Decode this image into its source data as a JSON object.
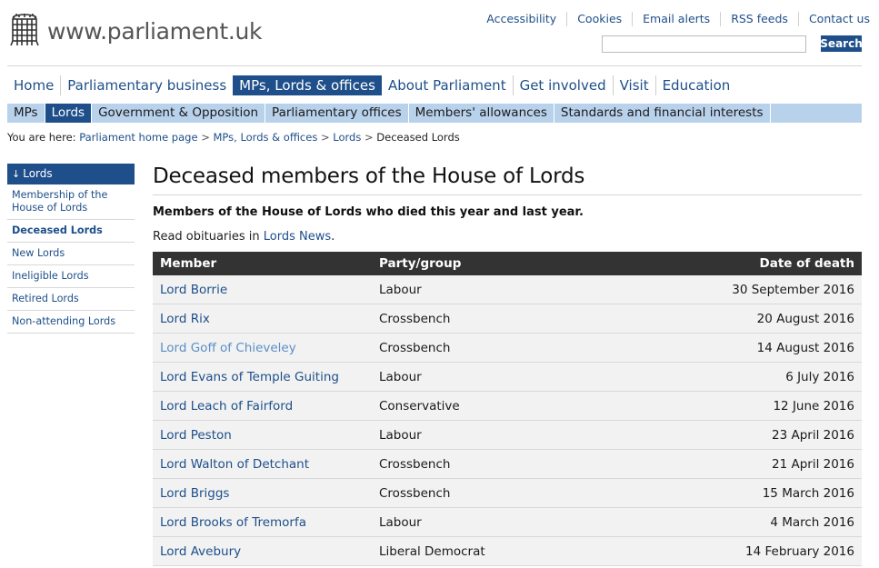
{
  "header": {
    "site_title": "www.parliament.uk",
    "utility_links": [
      "Accessibility",
      "Cookies",
      "Email alerts",
      "RSS feeds",
      "Contact us"
    ],
    "search": {
      "placeholder": "",
      "value": "",
      "button_label": "Search"
    }
  },
  "primary_nav": [
    {
      "label": "Home"
    },
    {
      "label": "Parliamentary business"
    },
    {
      "label": "MPs, Lords & offices",
      "active": true
    },
    {
      "label": "About Parliament"
    },
    {
      "label": "Get involved"
    },
    {
      "label": "Visit"
    },
    {
      "label": "Education"
    }
  ],
  "secondary_nav": [
    {
      "label": "MPs"
    },
    {
      "label": "Lords",
      "active": true
    },
    {
      "label": "Government & Opposition"
    },
    {
      "label": "Parliamentary offices"
    },
    {
      "label": "Members' allowances"
    },
    {
      "label": "Standards and financial interests"
    }
  ],
  "breadcrumb": {
    "prefix": "You are here:",
    "links": [
      "Parliament home page",
      "MPs, Lords & offices",
      "Lords"
    ],
    "separator": ">",
    "current": "Deceased Lords"
  },
  "sidebar": {
    "heading": "Lords",
    "items": [
      {
        "label": "Membership of the House of Lords"
      },
      {
        "label": "Deceased Lords",
        "active": true
      },
      {
        "label": "New Lords"
      },
      {
        "label": "Ineligible Lords"
      },
      {
        "label": "Retired Lords"
      },
      {
        "label": "Non-attending Lords"
      }
    ]
  },
  "main": {
    "title": "Deceased members of the House of Lords",
    "subtitle": "Members of the House of Lords who died this year and last year.",
    "intro_prefix": "Read obituaries in ",
    "intro_link": "Lords News",
    "intro_suffix": ".",
    "table": {
      "headers": [
        "Member",
        "Party/group",
        "Date of death"
      ],
      "rows": [
        {
          "member": "Lord Borrie",
          "party": "Labour",
          "date": "30 September 2016"
        },
        {
          "member": "Lord Rix",
          "party": "Crossbench",
          "date": "20 August 2016"
        },
        {
          "member": "Lord Goff of Chieveley",
          "party": "Crossbench",
          "date": "14 August 2016",
          "visited": true
        },
        {
          "member": "Lord Evans of Temple Guiting",
          "party": "Labour",
          "date": "6 July 2016"
        },
        {
          "member": "Lord Leach of Fairford",
          "party": "Conservative",
          "date": "12 June 2016"
        },
        {
          "member": "Lord Peston",
          "party": "Labour",
          "date": "23 April 2016"
        },
        {
          "member": "Lord Walton of Detchant",
          "party": "Crossbench",
          "date": "21 April 2016"
        },
        {
          "member": "Lord Briggs",
          "party": "Crossbench",
          "date": "15 March 2016"
        },
        {
          "member": "Lord Brooks of Tremorfa",
          "party": "Labour",
          "date": "4 March 2016"
        },
        {
          "member": "Lord Avebury",
          "party": "Liberal Democrat",
          "date": "14 February 2016"
        }
      ]
    }
  },
  "colors": {
    "brand_blue": "#1e4f8a",
    "subnav_bg": "#b9d2ec",
    "table_header": "#333333",
    "visited_link": "#5b8ec5"
  },
  "icons": {
    "logo": "portcullis-icon",
    "sidebar_arrow": "arrow-down-icon"
  }
}
